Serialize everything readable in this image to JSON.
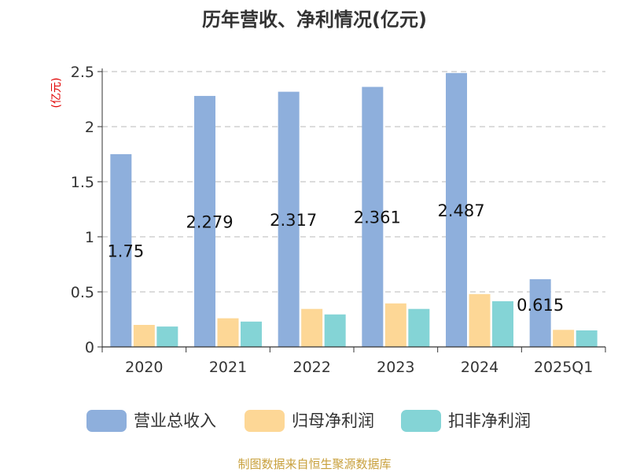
{
  "chart_data": {
    "type": "bar",
    "title": "历年营收、净利情况(亿元)",
    "unit_label": "(亿元)",
    "categories": [
      "2020",
      "2021",
      "2022",
      "2023",
      "2024",
      "2025Q1"
    ],
    "ylim": [
      0,
      2.5
    ],
    "yticks": [
      "0",
      "0.5",
      "1",
      "1.5",
      "2",
      "2.5"
    ],
    "grid": true,
    "legend_position": "bottom",
    "series": [
      {
        "name": "营业总收入",
        "color": "#8eafdc",
        "values": [
          1.75,
          2.279,
          2.317,
          2.361,
          2.487,
          0.615
        ],
        "labels": [
          "1.75",
          "2.279",
          "2.317",
          "2.361",
          "2.487",
          "0.615"
        ]
      },
      {
        "name": "归母净利润",
        "color": "#fdd796",
        "values": [
          0.2,
          0.26,
          0.345,
          0.395,
          0.48,
          0.155
        ]
      },
      {
        "name": "扣非净利润",
        "color": "#84d4d6",
        "values": [
          0.185,
          0.23,
          0.295,
          0.345,
          0.415,
          0.15
        ]
      }
    ],
    "source": "制图数据来自恒生聚源数据库"
  }
}
